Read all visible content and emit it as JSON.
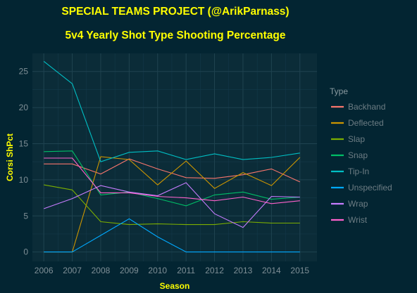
{
  "chart_data": {
    "type": "line",
    "title": "SPECIAL TEAMS PROJECT (@ArikParnass)",
    "subtitle": "5v4 Yearly Shot Type Shooting Percentage",
    "xlabel": "Season",
    "ylabel": "Corsi ShPct",
    "x": [
      2006,
      2007,
      2008,
      2009,
      2010,
      2011,
      2012,
      2013,
      2014,
      2015
    ],
    "xlim": [
      2005.6,
      2015.6
    ],
    "ylim": [
      -1.3,
      27.5
    ],
    "yticks": [
      0,
      5,
      10,
      15,
      20,
      25
    ],
    "grid": true,
    "legend_title": "Type",
    "legend_position": "right",
    "series": [
      {
        "name": "Backhand",
        "color": "#f8766d",
        "values": [
          12.2,
          12.2,
          10.8,
          12.9,
          11.5,
          10.3,
          10.2,
          10.7,
          11.5,
          9.7
        ]
      },
      {
        "name": "Deflected",
        "color": "#cd9600",
        "values": [
          0.0,
          0.0,
          13.2,
          12.8,
          9.3,
          12.6,
          8.8,
          11.0,
          9.2,
          13.1
        ]
      },
      {
        "name": "Slap",
        "color": "#7cae00",
        "values": [
          9.3,
          8.6,
          4.2,
          3.8,
          3.9,
          3.8,
          3.8,
          4.2,
          4.0,
          4.0
        ]
      },
      {
        "name": "Snap",
        "color": "#00be67",
        "values": [
          13.9,
          14.0,
          7.9,
          8.3,
          7.4,
          6.4,
          7.9,
          8.3,
          7.3,
          7.6
        ]
      },
      {
        "name": "Tip-In",
        "color": "#00bfc4",
        "values": [
          26.4,
          23.3,
          12.5,
          13.8,
          14.0,
          12.8,
          13.6,
          12.8,
          13.1,
          13.7
        ]
      },
      {
        "name": "Unspecified",
        "color": "#00a9ff",
        "values": [
          0.0,
          0.0,
          2.3,
          4.6,
          2.1,
          0.0,
          0.0,
          0.0,
          0.0,
          0.0
        ]
      },
      {
        "name": "Wrap",
        "color": "#c77cff",
        "values": [
          6.0,
          7.4,
          9.2,
          8.3,
          7.8,
          9.6,
          5.3,
          3.4,
          7.7,
          7.6
        ]
      },
      {
        "name": "Wrist",
        "color": "#ff61cc",
        "values": [
          13.0,
          13.0,
          8.2,
          8.2,
          7.7,
          7.5,
          7.1,
          7.6,
          6.7,
          7.1
        ]
      }
    ]
  }
}
